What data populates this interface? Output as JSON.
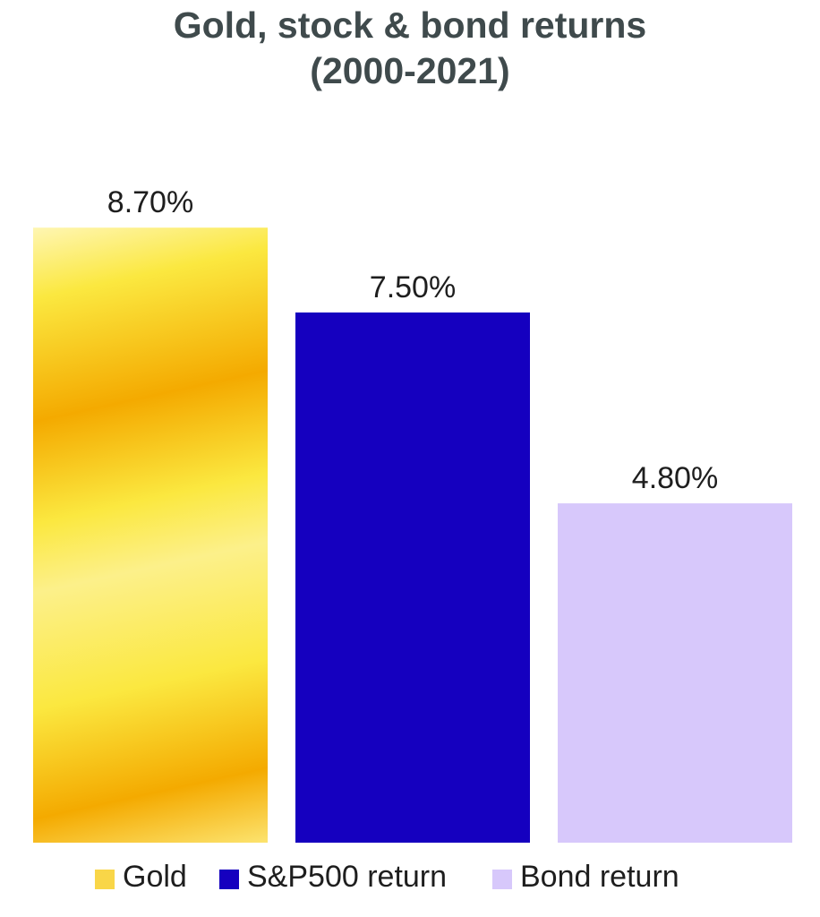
{
  "chart_data": {
    "type": "bar",
    "title": "Gold, stock & bond returns",
    "subtitle": "(2000-2021)",
    "categories": [
      "Gold",
      "S&P500 return",
      "Bond return"
    ],
    "values": [
      8.7,
      7.5,
      4.8
    ],
    "value_labels": [
      "8.70%",
      "7.50%",
      "4.80%"
    ],
    "unit": "%",
    "ylim": [
      0,
      9.83
    ],
    "grid": false,
    "legend_position": "bottom",
    "legend": [
      {
        "label": "Gold",
        "color": "#f9d648"
      },
      {
        "label": "S&P500 return",
        "color": "#1500bf"
      },
      {
        "label": "Bond return",
        "color": "#d7c8fb"
      }
    ],
    "colors": {
      "gold_light": "#fff3a8",
      "gold_mid": "#fbe840",
      "gold_dark": "#f4aa00",
      "sp500": "#1500bf",
      "bond": "#d7c8fb"
    }
  }
}
